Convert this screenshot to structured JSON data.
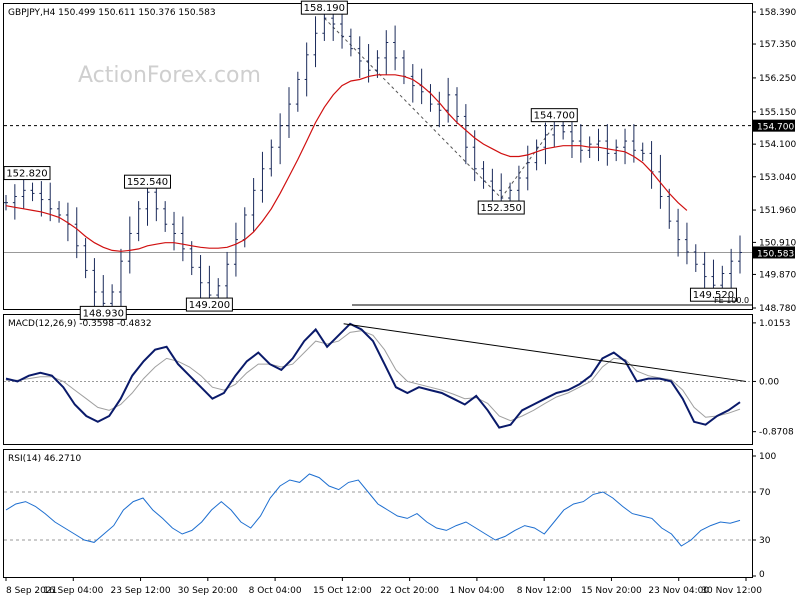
{
  "chart_data": {
    "type": "candlestick",
    "symbol_header": "GBPJPY,H4  150.499 150.611 150.376 150.583",
    "watermark": "ActionForex.com",
    "x_ticks": [
      "8 Sep 2021",
      "16 Sep 04:00",
      "23 Sep 12:00",
      "30 Sep 20:00",
      "8 Oct 04:00",
      "15 Oct 12:00",
      "22 Oct 20:00",
      "1 Nov 04:00",
      "8 Nov 12:00",
      "15 Nov 20:00",
      "23 Nov 04:00",
      "30 Nov 12:00"
    ],
    "price_panel": {
      "y_ticks": [
        "158.390",
        "157.350",
        "156.250",
        "155.150",
        "154.100",
        "153.040",
        "151.960",
        "150.910",
        "149.870",
        "148.780"
      ],
      "ylim": [
        148.78,
        158.39
      ],
      "current_price": "150.583",
      "reference_level": "154.700",
      "fe_label": "FE 100.0",
      "close_series": [
        152.2,
        152.4,
        152.6,
        152.5,
        152.3,
        152.0,
        151.8,
        151.5,
        150.8,
        150.0,
        149.3,
        148.93,
        149.3,
        150.3,
        151.2,
        152.0,
        152.54,
        152.0,
        151.5,
        151.2,
        150.7,
        150.1,
        149.6,
        149.2,
        149.5,
        150.2,
        151.0,
        151.8,
        152.6,
        153.3,
        154.0,
        154.7,
        155.4,
        156.2,
        157.0,
        157.7,
        158.19,
        158.0,
        157.6,
        157.2,
        156.8,
        156.5,
        156.9,
        157.4,
        156.9,
        156.3,
        156.0,
        155.8,
        155.4,
        155.2,
        155.7,
        155.0,
        154.0,
        153.3,
        152.9,
        152.6,
        152.35,
        152.6,
        153.0,
        153.5,
        154.0,
        154.4,
        154.7,
        154.5,
        154.2,
        153.9,
        154.1,
        154.2,
        153.8,
        154.0,
        154.2,
        153.9,
        153.8,
        153.2,
        152.4,
        151.6,
        151.0,
        150.6,
        150.2,
        149.8,
        149.52,
        149.9,
        150.3,
        150.583
      ],
      "ma_series": [
        152.1,
        152.05,
        152.0,
        151.95,
        151.9,
        151.82,
        151.72,
        151.55,
        151.35,
        151.1,
        150.9,
        150.75,
        150.65,
        150.62,
        150.65,
        150.7,
        150.8,
        150.85,
        150.9,
        150.9,
        150.85,
        150.8,
        150.75,
        150.72,
        150.72,
        150.75,
        150.85,
        151.0,
        151.25,
        151.6,
        152.0,
        152.5,
        153.05,
        153.6,
        154.2,
        154.8,
        155.3,
        155.7,
        156.0,
        156.15,
        156.2,
        156.3,
        156.35,
        156.35,
        156.35,
        156.3,
        156.2,
        156.0,
        155.75,
        155.45,
        155.1,
        154.8,
        154.55,
        154.3,
        154.1,
        153.95,
        153.8,
        153.7,
        153.7,
        153.75,
        153.85,
        153.95,
        154.0,
        154.05,
        154.05,
        154.05,
        154.0,
        154.0,
        153.95,
        153.9,
        153.85,
        153.7,
        153.5,
        153.2,
        152.85,
        152.5,
        152.2,
        151.95
      ],
      "labels": [
        {
          "text": "152.820",
          "idx": 2,
          "value": 152.82,
          "pos": "above"
        },
        {
          "text": "148.930",
          "idx": 11,
          "value": 148.93,
          "pos": "below"
        },
        {
          "text": "152.540",
          "idx": 16,
          "value": 152.54,
          "pos": "above"
        },
        {
          "text": "149.200",
          "idx": 23,
          "value": 149.2,
          "pos": "below"
        },
        {
          "text": "158.190",
          "idx": 36,
          "value": 158.19,
          "pos": "above"
        },
        {
          "text": "152.350",
          "idx": 56,
          "value": 152.35,
          "pos": "below"
        },
        {
          "text": "154.700",
          "idx": 62,
          "value": 154.7,
          "pos": "above"
        },
        {
          "text": "149.520",
          "idx": 80,
          "value": 149.52,
          "pos": "below"
        }
      ]
    },
    "macd_panel": {
      "header": "MACD(12,26,9) -0.3598 -0.4832",
      "y_ticks": [
        "1.0153",
        "0.00",
        "-0.8708"
      ],
      "ylim": [
        -1.05,
        1.1
      ],
      "macd_series": [
        0.05,
        0.0,
        0.1,
        0.15,
        0.1,
        -0.1,
        -0.4,
        -0.6,
        -0.7,
        -0.6,
        -0.3,
        0.1,
        0.35,
        0.55,
        0.6,
        0.3,
        0.1,
        -0.1,
        -0.3,
        -0.2,
        0.1,
        0.35,
        0.5,
        0.3,
        0.2,
        0.4,
        0.7,
        0.9,
        0.6,
        0.8,
        1.0,
        0.9,
        0.7,
        0.3,
        -0.1,
        -0.2,
        -0.1,
        -0.15,
        -0.2,
        -0.3,
        -0.4,
        -0.25,
        -0.5,
        -0.8,
        -0.75,
        -0.5,
        -0.4,
        -0.3,
        -0.2,
        -0.15,
        -0.05,
        0.1,
        0.4,
        0.5,
        0.35,
        0.0,
        0.05,
        0.05,
        0.0,
        -0.3,
        -0.7,
        -0.75,
        -0.6,
        -0.5,
        -0.36
      ],
      "signal_series": [
        0.02,
        0.02,
        0.05,
        0.08,
        0.08,
        0.0,
        -0.15,
        -0.3,
        -0.45,
        -0.5,
        -0.4,
        -0.2,
        0.05,
        0.25,
        0.4,
        0.35,
        0.25,
        0.1,
        -0.1,
        -0.15,
        -0.05,
        0.15,
        0.3,
        0.3,
        0.25,
        0.3,
        0.5,
        0.7,
        0.65,
        0.7,
        0.85,
        0.88,
        0.8,
        0.55,
        0.2,
        0.0,
        -0.05,
        -0.1,
        -0.15,
        -0.22,
        -0.3,
        -0.28,
        -0.38,
        -0.6,
        -0.68,
        -0.6,
        -0.5,
        -0.38,
        -0.27,
        -0.2,
        -0.1,
        0.0,
        0.25,
        0.4,
        0.38,
        0.18,
        0.1,
        0.06,
        0.03,
        -0.15,
        -0.45,
        -0.62,
        -0.6,
        -0.55,
        -0.48
      ],
      "trendline": [
        [
          0.46,
          1.0
        ],
        [
          1.0,
          0.0
        ]
      ]
    },
    "rsi_panel": {
      "header": "RSI(14) 46.2710",
      "y_ticks": [
        "100",
        "70",
        "30",
        "0"
      ],
      "ylim": [
        0,
        100
      ],
      "levels": [
        70,
        30
      ],
      "rsi_series": [
        55,
        60,
        62,
        58,
        52,
        45,
        40,
        35,
        30,
        28,
        35,
        42,
        55,
        62,
        65,
        55,
        48,
        40,
        35,
        38,
        45,
        55,
        62,
        55,
        45,
        40,
        50,
        65,
        75,
        80,
        78,
        85,
        82,
        75,
        72,
        78,
        80,
        70,
        60,
        55,
        50,
        48,
        52,
        45,
        40,
        38,
        42,
        45,
        40,
        35,
        30,
        33,
        38,
        42,
        40,
        35,
        45,
        55,
        60,
        62,
        68,
        70,
        65,
        58,
        52,
        50,
        48,
        40,
        35,
        25,
        30,
        38,
        42,
        45,
        44,
        46.3
      ]
    }
  }
}
